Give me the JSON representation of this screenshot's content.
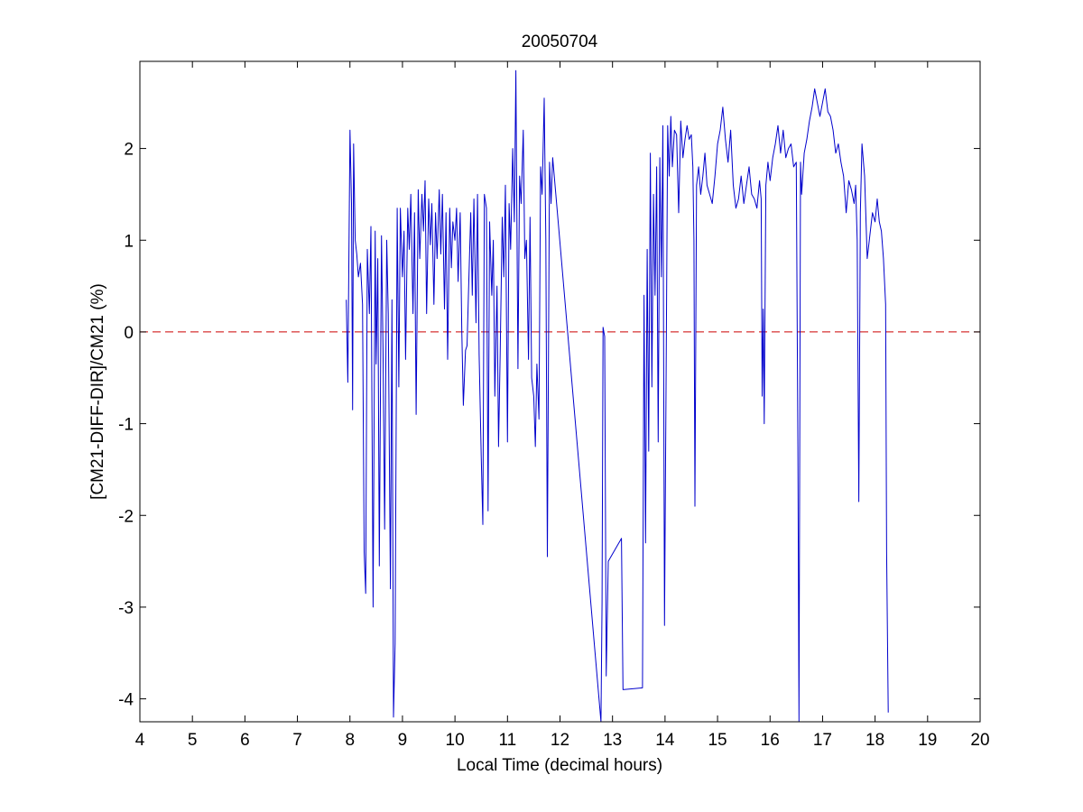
{
  "chart_data": {
    "type": "line",
    "title": "20050704",
    "xlabel": "Local Time (decimal hours)",
    "ylabel": "[CM21-DIFF-DIR]/CM21 (%)",
    "xlim": [
      4,
      20
    ],
    "ylim": [
      -4.25,
      2.95
    ],
    "xticks": [
      4,
      5,
      6,
      7,
      8,
      9,
      10,
      11,
      12,
      13,
      14,
      15,
      16,
      17,
      18,
      19,
      20
    ],
    "yticks": [
      -4,
      -3,
      -2,
      -1,
      0,
      1,
      2
    ],
    "grid": false,
    "legend": "none",
    "reference_line": {
      "y": 0,
      "style": "dashed",
      "color": "#cc0000"
    },
    "series": [
      {
        "color": "#0000cc",
        "points": [
          [
            7.93,
            0.35
          ],
          [
            7.96,
            -0.55
          ],
          [
            8.0,
            2.2
          ],
          [
            8.03,
            1.4
          ],
          [
            8.05,
            -0.85
          ],
          [
            8.07,
            2.05
          ],
          [
            8.1,
            1.0
          ],
          [
            8.13,
            0.85
          ],
          [
            8.16,
            0.6
          ],
          [
            8.2,
            0.75
          ],
          [
            8.24,
            0.3
          ],
          [
            8.27,
            -2.4
          ],
          [
            8.3,
            -2.85
          ],
          [
            8.33,
            0.9
          ],
          [
            8.37,
            0.2
          ],
          [
            8.4,
            1.15
          ],
          [
            8.44,
            -3.0
          ],
          [
            8.48,
            1.1
          ],
          [
            8.5,
            -0.35
          ],
          [
            8.53,
            0.8
          ],
          [
            8.56,
            -2.55
          ],
          [
            8.6,
            1.05
          ],
          [
            8.63,
            -0.2
          ],
          [
            8.66,
            -2.15
          ],
          [
            8.7,
            1.0
          ],
          [
            8.73,
            0.2
          ],
          [
            8.77,
            -2.8
          ],
          [
            8.8,
            0.35
          ],
          [
            8.83,
            -4.2
          ],
          [
            8.86,
            -3.4
          ],
          [
            8.9,
            1.35
          ],
          [
            8.93,
            -0.6
          ],
          [
            8.96,
            1.35
          ],
          [
            9.0,
            0.6
          ],
          [
            9.03,
            1.1
          ],
          [
            9.06,
            -0.3
          ],
          [
            9.1,
            1.35
          ],
          [
            9.13,
            0.9
          ],
          [
            9.16,
            1.5
          ],
          [
            9.2,
            0.2
          ],
          [
            9.23,
            1.3
          ],
          [
            9.26,
            -0.9
          ],
          [
            9.3,
            1.55
          ],
          [
            9.33,
            0.8
          ],
          [
            9.37,
            1.5
          ],
          [
            9.4,
            1.1
          ],
          [
            9.43,
            1.65
          ],
          [
            9.46,
            0.2
          ],
          [
            9.5,
            1.45
          ],
          [
            9.53,
            0.95
          ],
          [
            9.56,
            1.4
          ],
          [
            9.6,
            0.3
          ],
          [
            9.63,
            1.3
          ],
          [
            9.66,
            0.8
          ],
          [
            9.7,
            1.55
          ],
          [
            9.73,
            0.85
          ],
          [
            9.76,
            1.5
          ],
          [
            9.8,
            0.25
          ],
          [
            9.83,
            1.3
          ],
          [
            9.86,
            -0.3
          ],
          [
            9.9,
            1.35
          ],
          [
            9.93,
            0.7
          ],
          [
            9.96,
            1.2
          ],
          [
            10.0,
            1.0
          ],
          [
            10.03,
            1.35
          ],
          [
            10.06,
            0.55
          ],
          [
            10.1,
            1.3
          ],
          [
            10.13,
            0.0
          ],
          [
            10.16,
            -0.8
          ],
          [
            10.2,
            -0.2
          ],
          [
            10.23,
            -0.15
          ],
          [
            10.26,
            0.5
          ],
          [
            10.3,
            1.3
          ],
          [
            10.33,
            0.4
          ],
          [
            10.36,
            1.45
          ],
          [
            10.4,
            0.1
          ],
          [
            10.43,
            1.5
          ],
          [
            10.46,
            -0.25
          ],
          [
            10.5,
            -1.35
          ],
          [
            10.53,
            -2.1
          ],
          [
            10.56,
            1.5
          ],
          [
            10.6,
            1.35
          ],
          [
            10.63,
            -1.95
          ],
          [
            10.66,
            1.2
          ],
          [
            10.7,
            0.4
          ],
          [
            10.73,
            1.0
          ],
          [
            10.76,
            -0.7
          ],
          [
            10.8,
            0.5
          ],
          [
            10.83,
            -1.25
          ],
          [
            10.86,
            -0.25
          ],
          [
            10.9,
            1.25
          ],
          [
            10.93,
            0.6
          ],
          [
            10.96,
            1.6
          ],
          [
            11.0,
            -1.2
          ],
          [
            11.03,
            1.4
          ],
          [
            11.06,
            0.9
          ],
          [
            11.1,
            2.0
          ],
          [
            11.13,
            1.2
          ],
          [
            11.16,
            2.85
          ],
          [
            11.2,
            -0.4
          ],
          [
            11.23,
            1.7
          ],
          [
            11.26,
            1.4
          ],
          [
            11.3,
            2.2
          ],
          [
            11.33,
            0.8
          ],
          [
            11.36,
            1.0
          ],
          [
            11.4,
            -0.3
          ],
          [
            11.43,
            1.25
          ],
          [
            11.46,
            -0.5
          ],
          [
            11.5,
            -0.7
          ],
          [
            11.53,
            -1.25
          ],
          [
            11.56,
            -0.35
          ],
          [
            11.6,
            -0.95
          ],
          [
            11.63,
            1.8
          ],
          [
            11.66,
            1.5
          ],
          [
            11.7,
            2.55
          ],
          [
            11.73,
            1.0
          ],
          [
            11.76,
            -2.45
          ],
          [
            11.8,
            1.85
          ],
          [
            11.83,
            1.4
          ],
          [
            11.86,
            1.9
          ],
          [
            12.78,
            -4.25
          ],
          [
            12.8,
            -2.95
          ],
          [
            12.82,
            0.05
          ],
          [
            12.85,
            -0.05
          ],
          [
            12.88,
            -3.75
          ],
          [
            12.92,
            -2.5
          ],
          [
            13.17,
            -2.25
          ],
          [
            13.2,
            -3.9
          ],
          [
            13.57,
            -3.88
          ],
          [
            13.6,
            0.4
          ],
          [
            13.63,
            -2.3
          ],
          [
            13.66,
            0.9
          ],
          [
            13.69,
            -1.3
          ],
          [
            13.72,
            1.95
          ],
          [
            13.75,
            -0.6
          ],
          [
            13.78,
            1.5
          ],
          [
            13.81,
            0.4
          ],
          [
            13.84,
            1.8
          ],
          [
            13.87,
            -1.2
          ],
          [
            13.9,
            1.9
          ],
          [
            13.93,
            0.6
          ],
          [
            13.96,
            2.25
          ],
          [
            13.99,
            -3.2
          ],
          [
            14.02,
            -0.6
          ],
          [
            14.05,
            2.25
          ],
          [
            14.08,
            1.7
          ],
          [
            14.11,
            2.35
          ],
          [
            14.14,
            1.8
          ],
          [
            14.18,
            2.2
          ],
          [
            14.22,
            2.15
          ],
          [
            14.26,
            1.3
          ],
          [
            14.3,
            2.3
          ],
          [
            14.34,
            1.9
          ],
          [
            14.38,
            2.1
          ],
          [
            14.42,
            2.25
          ],
          [
            14.46,
            2.1
          ],
          [
            14.5,
            2.15
          ],
          [
            14.53,
            1.8
          ],
          [
            14.55,
            1.0
          ],
          [
            14.57,
            -1.9
          ],
          [
            14.6,
            1.6
          ],
          [
            14.64,
            1.8
          ],
          [
            14.68,
            1.5
          ],
          [
            14.72,
            1.7
          ],
          [
            14.76,
            1.95
          ],
          [
            14.8,
            1.6
          ],
          [
            14.85,
            1.5
          ],
          [
            14.9,
            1.4
          ],
          [
            14.95,
            1.7
          ],
          [
            15.0,
            2.05
          ],
          [
            15.05,
            2.2
          ],
          [
            15.1,
            2.45
          ],
          [
            15.15,
            2.1
          ],
          [
            15.2,
            1.85
          ],
          [
            15.25,
            2.2
          ],
          [
            15.3,
            1.6
          ],
          [
            15.35,
            1.35
          ],
          [
            15.4,
            1.45
          ],
          [
            15.45,
            1.7
          ],
          [
            15.5,
            1.4
          ],
          [
            15.55,
            1.6
          ],
          [
            15.6,
            1.8
          ],
          [
            15.65,
            1.5
          ],
          [
            15.7,
            1.45
          ],
          [
            15.75,
            1.35
          ],
          [
            15.8,
            1.65
          ],
          [
            15.83,
            1.45
          ],
          [
            15.85,
            -0.7
          ],
          [
            15.87,
            0.25
          ],
          [
            15.89,
            -1.0
          ],
          [
            15.92,
            1.6
          ],
          [
            15.96,
            1.85
          ],
          [
            16.0,
            1.65
          ],
          [
            16.05,
            1.9
          ],
          [
            16.1,
            2.05
          ],
          [
            16.15,
            2.25
          ],
          [
            16.2,
            1.95
          ],
          [
            16.25,
            2.2
          ],
          [
            16.3,
            1.9
          ],
          [
            16.35,
            2.0
          ],
          [
            16.4,
            2.05
          ],
          [
            16.45,
            1.8
          ],
          [
            16.5,
            1.85
          ],
          [
            16.53,
            -1.25
          ],
          [
            16.55,
            -4.25
          ],
          [
            16.58,
            1.85
          ],
          [
            16.6,
            1.5
          ],
          [
            16.65,
            1.95
          ],
          [
            16.7,
            2.1
          ],
          [
            16.75,
            2.3
          ],
          [
            16.8,
            2.45
          ],
          [
            16.85,
            2.65
          ],
          [
            16.9,
            2.5
          ],
          [
            16.95,
            2.35
          ],
          [
            17.0,
            2.5
          ],
          [
            17.05,
            2.65
          ],
          [
            17.1,
            2.4
          ],
          [
            17.15,
            2.35
          ],
          [
            17.2,
            2.2
          ],
          [
            17.25,
            1.95
          ],
          [
            17.3,
            2.05
          ],
          [
            17.35,
            1.85
          ],
          [
            17.4,
            1.7
          ],
          [
            17.45,
            1.3
          ],
          [
            17.5,
            1.65
          ],
          [
            17.55,
            1.55
          ],
          [
            17.6,
            1.4
          ],
          [
            17.63,
            1.6
          ],
          [
            17.66,
            1.0
          ],
          [
            17.69,
            -1.85
          ],
          [
            17.72,
            1.3
          ],
          [
            17.75,
            2.05
          ],
          [
            17.8,
            1.7
          ],
          [
            17.85,
            0.8
          ],
          [
            17.9,
            1.05
          ],
          [
            17.95,
            1.3
          ],
          [
            18.0,
            1.2
          ],
          [
            18.04,
            1.45
          ],
          [
            18.08,
            1.2
          ],
          [
            18.12,
            1.1
          ],
          [
            18.16,
            0.8
          ],
          [
            18.2,
            0.3
          ],
          [
            18.22,
            -2.4
          ],
          [
            18.25,
            -4.15
          ]
        ]
      }
    ]
  }
}
